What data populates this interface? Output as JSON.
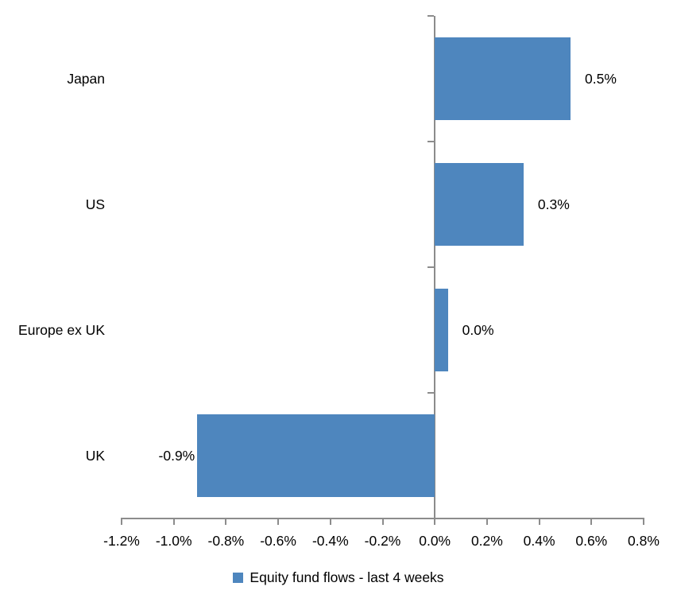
{
  "chart_data": {
    "type": "bar",
    "orientation": "horizontal",
    "title": "",
    "xlabel": "",
    "ylabel": "",
    "categories": [
      "Japan",
      "US",
      "Europe ex UK",
      "UK"
    ],
    "series": [
      {
        "name": "Equity fund flows - last 4 weeks",
        "values": [
          0.52,
          0.34,
          0.05,
          -0.91
        ],
        "data_labels": [
          "0.5%",
          "0.3%",
          "0.0%",
          "-0.9%"
        ],
        "color": "#4E86BE"
      }
    ],
    "xlim": [
      -1.2,
      0.8
    ],
    "x_tick_step": 0.2,
    "x_tick_labels": [
      "-1.2%",
      "-1.0%",
      "-0.8%",
      "-0.6%",
      "-0.4%",
      "-0.2%",
      "0.0%",
      "0.2%",
      "0.4%",
      "0.6%",
      "0.8%"
    ],
    "grid": false,
    "legend_position": "bottom",
    "colors": {
      "bar": "#4E86BE",
      "axis": "#8C8C8C",
      "text": "#000000",
      "background": "#FFFFFF"
    }
  }
}
